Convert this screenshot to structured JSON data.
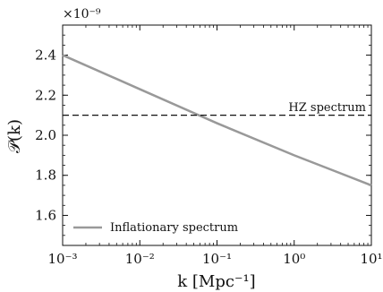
{
  "chart_data": {
    "type": "line",
    "title": "",
    "xlabel": "k [Mpc⁻¹]",
    "ylabel": "𝒫(k)",
    "xscale": "log",
    "xlim": [
      0.001,
      10
    ],
    "ylim": [
      1.45e-09,
      2.55e-09
    ],
    "y_multiplier_label": "×10⁻⁹",
    "x_ticks": [
      {
        "value": 0.001,
        "label": "10⁻³"
      },
      {
        "value": 0.01,
        "label": "10⁻²"
      },
      {
        "value": 0.1,
        "label": "10⁻¹"
      },
      {
        "value": 1,
        "label": "10⁰"
      },
      {
        "value": 10,
        "label": "10¹"
      }
    ],
    "y_ticks": [
      {
        "value": 1.6e-09,
        "label": "1.6"
      },
      {
        "value": 1.8e-09,
        "label": "1.8"
      },
      {
        "value": 2e-09,
        "label": "2.0"
      },
      {
        "value": 2.2e-09,
        "label": "2.2"
      },
      {
        "value": 2.4e-09,
        "label": "2.4"
      }
    ],
    "grid": false,
    "legend_position": "lower-left",
    "series": [
      {
        "name": "Inflationary spectrum",
        "style": "solid",
        "color": "#999999",
        "x": [
          0.001,
          0.01,
          0.1,
          1,
          10
        ],
        "y": [
          2.4e-09,
          2.23e-09,
          2.06e-09,
          1.9e-09,
          1.75e-09
        ]
      },
      {
        "name": "",
        "style": "dashed",
        "color": "#111111",
        "x": [
          0.001,
          10
        ],
        "y": [
          2.1e-09,
          2.1e-09
        ]
      }
    ],
    "annotations": [
      {
        "text": "HZ spectrum",
        "x": 10,
        "y": 2.1e-09
      }
    ]
  }
}
